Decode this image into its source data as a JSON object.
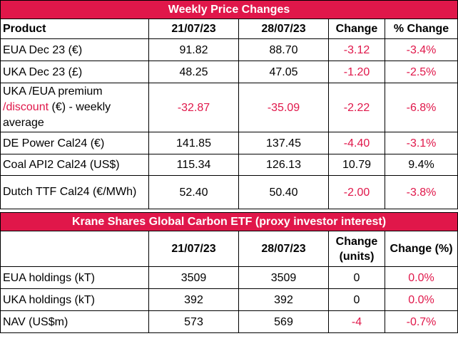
{
  "weekly": {
    "title": "Weekly Price Changes",
    "headers": [
      "Product",
      "21/07/23",
      "28/07/23",
      "Change",
      "% Change"
    ],
    "rows": [
      {
        "product": "EUA Dec 23 (€)",
        "v1": "91.82",
        "v2": "88.70",
        "change": "-3.12",
        "pct": "-3.4%"
      },
      {
        "product": "UKA Dec 23 (£)",
        "v1": "48.25",
        "v2": "47.05",
        "change": "-1.20",
        "pct": "-2.5%"
      },
      {
        "product": "UKA /EUA premium",
        "product_neg": "/discount",
        "product_tail": " (€) - weekly average",
        "v1": "-32.87",
        "v2": "-35.09",
        "change": "-2.22",
        "pct": "-6.8%"
      },
      {
        "product": "DE Power Cal24 (€)",
        "v1": "141.85",
        "v2": "137.45",
        "change": "-4.40",
        "pct": "-3.1%"
      },
      {
        "product": "Coal API2 Cal24 (US$)",
        "v1": "115.34",
        "v2": "126.13",
        "change": "10.79",
        "pct": "9.4%"
      },
      {
        "product": "Dutch TTF Cal24 (€/MWh)",
        "v1": "52.40",
        "v2": "50.40",
        "change": "-2.00",
        "pct": "-3.8%"
      }
    ]
  },
  "etf": {
    "title": "Krane Shares Global Carbon ETF (proxy investor interest)",
    "headers": [
      "",
      "21/07/23",
      "28/07/23",
      "Change (units)",
      "Change (%)"
    ],
    "rows": [
      {
        "product": "EUA holdings (kT)",
        "v1": "3509",
        "v2": "3509",
        "change": "0",
        "pct": "0.0%"
      },
      {
        "product": "UKA holdings (kT)",
        "v1": "392",
        "v2": "392",
        "change": "0",
        "pct": "0.0%"
      },
      {
        "product": "NAV (US$m)",
        "v1": "573",
        "v2": "569",
        "change": "-4",
        "pct": "-0.7%"
      }
    ]
  },
  "colors": {
    "accent": "#e0174a",
    "text": "#000000",
    "background": "#ffffff"
  }
}
